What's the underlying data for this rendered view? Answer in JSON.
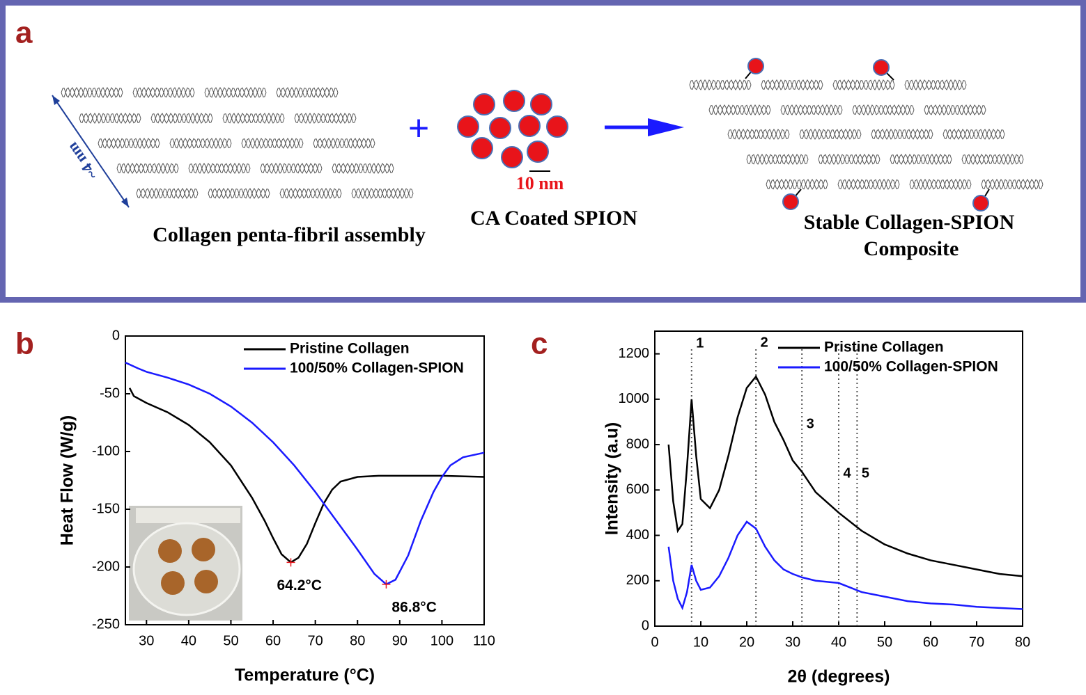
{
  "panel_a": {
    "label": "a",
    "size_label": "~4 nm",
    "plus": "+",
    "scale_label": "10 nm",
    "spion_label": "CA Coated SPION",
    "collagen_label": "Collagen penta-fibril assembly",
    "composite_label": [
      "Stable Collagen-SPION",
      "Composite"
    ]
  },
  "chart_data": [
    {
      "type": "line",
      "label": "b",
      "x_label": "Temperature (°C)",
      "y_label": "Heat Flow (W/g)",
      "xlim": [
        25,
        110
      ],
      "xticks": [
        30,
        40,
        50,
        60,
        70,
        80,
        90,
        100,
        110
      ],
      "ylim": [
        -250,
        0
      ],
      "yticks": [
        0,
        -50,
        -100,
        -150,
        -200,
        -250
      ],
      "series": [
        {
          "name": "Pristine Collagen",
          "color": "#000000",
          "x": [
            26,
            27,
            30,
            35,
            40,
            45,
            50,
            55,
            58,
            60,
            62,
            64.2,
            66,
            68,
            70,
            72,
            74,
            76,
            80,
            85,
            90,
            100,
            110
          ],
          "values": [
            -45,
            -52,
            -58,
            -66,
            -77,
            -92,
            -112,
            -140,
            -160,
            -175,
            -189,
            -196,
            -192,
            -180,
            -162,
            -145,
            -133,
            -126,
            -122,
            -121,
            -121,
            -121,
            -122
          ]
        },
        {
          "name": "100/50% Collagen-SPION",
          "color": "#1a1aff",
          "x": [
            25,
            28,
            30,
            35,
            40,
            45,
            50,
            55,
            60,
            65,
            70,
            75,
            80,
            84,
            86.8,
            89,
            92,
            95,
            98,
            100,
            102,
            105,
            110
          ],
          "values": [
            -23,
            -28,
            -31,
            -36,
            -42,
            -50,
            -61,
            -75,
            -92,
            -112,
            -135,
            -160,
            -185,
            -206,
            -215,
            -211,
            -190,
            -160,
            -135,
            -122,
            -112,
            -105,
            -101
          ]
        }
      ],
      "annotations": [
        {
          "text": "64.2°C",
          "x": 64.2,
          "y": -196
        },
        {
          "text": "86.8°C",
          "x": 86.8,
          "y": -215
        }
      ]
    },
    {
      "type": "line",
      "label": "c",
      "x_label": "2θ (degrees)",
      "y_label": "Intensity (a.u)",
      "xlim": [
        0,
        80
      ],
      "xticks": [
        0,
        10,
        20,
        30,
        40,
        50,
        60,
        70,
        80
      ],
      "ylim": [
        0,
        1300
      ],
      "yticks": [
        0,
        200,
        400,
        600,
        800,
        1000,
        1200
      ],
      "series": [
        {
          "name": "Pristine Collagen",
          "color": "#000000",
          "x": [
            3,
            4,
            5,
            6,
            7,
            8,
            9,
            10,
            12,
            14,
            16,
            18,
            20,
            22,
            24,
            26,
            28,
            30,
            32,
            35,
            40,
            45,
            50,
            55,
            60,
            65,
            70,
            75,
            80
          ],
          "values": [
            800,
            550,
            420,
            450,
            700,
            1000,
            750,
            560,
            520,
            600,
            750,
            920,
            1050,
            1100,
            1020,
            900,
            820,
            730,
            680,
            590,
            500,
            420,
            360,
            320,
            290,
            270,
            250,
            230,
            220
          ]
        },
        {
          "name": "100/50% Collagen-SPION",
          "color": "#1a1aff",
          "x": [
            3,
            4,
            5,
            6,
            7,
            8,
            9,
            10,
            12,
            14,
            16,
            18,
            20,
            22,
            24,
            26,
            28,
            30,
            32,
            35,
            40,
            45,
            50,
            55,
            60,
            65,
            70,
            75,
            80
          ],
          "values": [
            350,
            200,
            120,
            80,
            150,
            270,
            200,
            160,
            170,
            220,
            300,
            400,
            460,
            430,
            350,
            290,
            250,
            230,
            215,
            200,
            190,
            150,
            130,
            110,
            100,
            95,
            85,
            80,
            75
          ]
        }
      ],
      "peaks": [
        {
          "x": 8,
          "label": "1"
        },
        {
          "x": 22,
          "label": "2"
        },
        {
          "x": 32,
          "label": "3"
        },
        {
          "x": 40,
          "label": "4"
        },
        {
          "x": 44,
          "label": "5"
        }
      ]
    }
  ]
}
